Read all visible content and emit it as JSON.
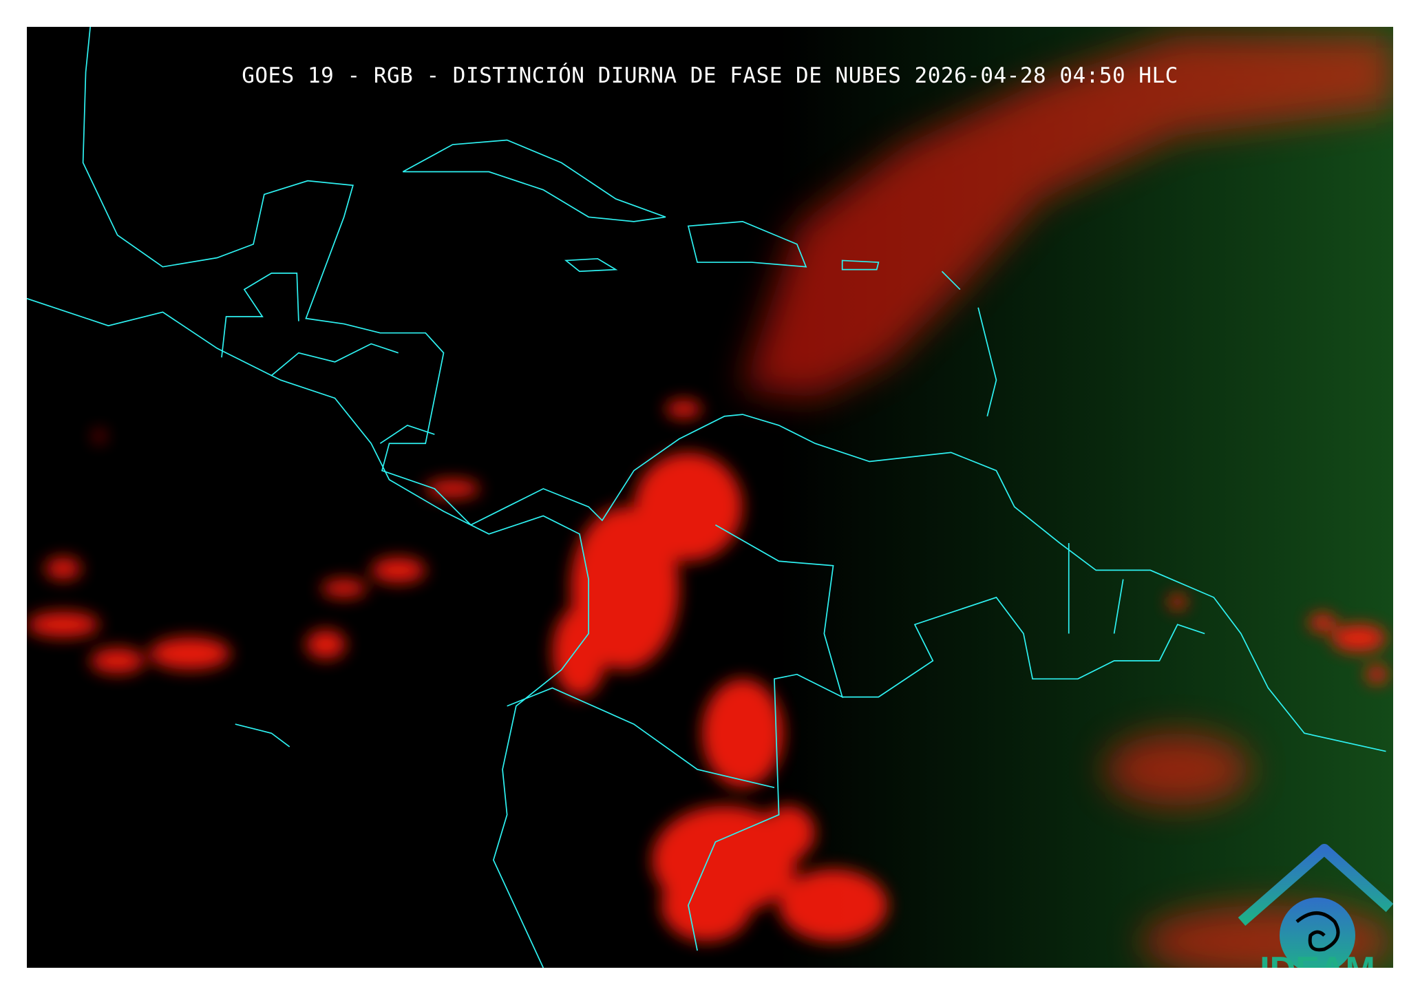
{
  "title": "GOES 19 - RGB - DISTINCIÓN DIURNA DE FASE DE NUBES 2026-04-28 04:50 HLC",
  "logo": {
    "text": "IDEAM"
  },
  "colors": {
    "background": "#000000",
    "coastline": "#2ef2f2",
    "cloud": "#ff1a10",
    "land_day": "#0f3a12",
    "logo": "#1fae86"
  }
}
